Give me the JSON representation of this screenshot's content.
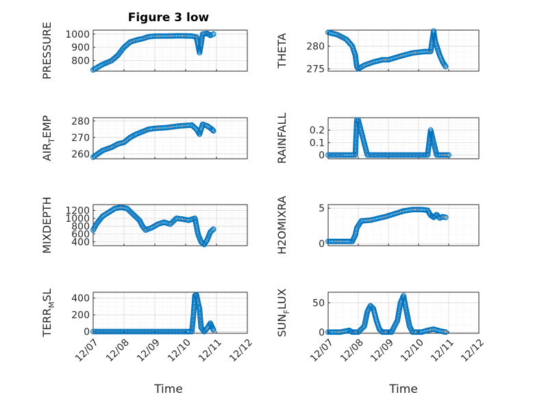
{
  "figure": {
    "title": "Figure 3 low"
  },
  "colors": {
    "marker": "#0072BD",
    "axis": "#262626",
    "grid_major": "#d9d9d9",
    "grid_minor": "#e6e6e6"
  },
  "x_axis": {
    "label": "Time",
    "ticks": [
      "12/07",
      "12/08",
      "12/09",
      "12/10",
      "12/11",
      "12/12"
    ],
    "tick_values": [
      0,
      1,
      2,
      3,
      4,
      5
    ],
    "range": [
      0,
      5
    ]
  },
  "chart_data": [
    {
      "type": "scatter",
      "name": "pressure",
      "ylabel": "PRESSURE",
      "title": "Figure 3 low",
      "ylim": [
        720,
        1030
      ],
      "yticks": [
        800,
        900,
        1000
      ],
      "ytick_labels": [
        "800",
        "900",
        "1000"
      ],
      "x_axis_ticks_visible": false,
      "grid": true,
      "points": [
        [
          0,
          730
        ],
        [
          0.3,
          770
        ],
        [
          0.6,
          800
        ],
        [
          0.8,
          840
        ],
        [
          1.0,
          900
        ],
        [
          1.2,
          940
        ],
        [
          1.4,
          955
        ],
        [
          1.6,
          965
        ],
        [
          1.8,
          980
        ],
        [
          2.0,
          985
        ],
        [
          2.4,
          985
        ],
        [
          2.8,
          987
        ],
        [
          3.2,
          985
        ],
        [
          3.35,
          978
        ],
        [
          3.45,
          860
        ],
        [
          3.5,
          925
        ],
        [
          3.55,
          1000
        ],
        [
          3.7,
          1005
        ],
        [
          3.8,
          990
        ],
        [
          3.9,
          1000
        ]
      ]
    },
    {
      "type": "scatter",
      "name": "theta",
      "ylabel": "THETA",
      "ylim": [
        274.5,
        283.5
      ],
      "yticks": [
        275,
        280
      ],
      "ytick_labels": [
        "275",
        "280"
      ],
      "x_axis_ticks_visible": false,
      "grid": true,
      "points": [
        [
          0,
          283
        ],
        [
          0.3,
          282.5
        ],
        [
          0.6,
          281.5
        ],
        [
          0.8,
          280
        ],
        [
          0.9,
          278
        ],
        [
          0.95,
          275.5
        ],
        [
          1.0,
          275
        ],
        [
          1.2,
          275.8
        ],
        [
          1.5,
          276.5
        ],
        [
          1.8,
          277
        ],
        [
          2.0,
          277
        ],
        [
          2.4,
          277.8
        ],
        [
          2.8,
          278.5
        ],
        [
          3.2,
          278.8
        ],
        [
          3.4,
          278.8
        ],
        [
          3.5,
          283.3
        ],
        [
          3.55,
          281
        ],
        [
          3.7,
          278
        ],
        [
          3.8,
          276.5
        ],
        [
          3.9,
          275.5
        ]
      ]
    },
    {
      "type": "scatter",
      "name": "air_temp",
      "ylabel": "AIR_TEMP",
      "ylim": [
        257,
        282
      ],
      "yticks": [
        260,
        270,
        280
      ],
      "ytick_labels": [
        "260",
        "270",
        "280"
      ],
      "x_axis_ticks_visible": false,
      "grid": true,
      "points": [
        [
          0,
          258
        ],
        [
          0.3,
          262
        ],
        [
          0.6,
          264
        ],
        [
          0.8,
          266
        ],
        [
          1.0,
          267
        ],
        [
          1.2,
          270
        ],
        [
          1.4,
          272
        ],
        [
          1.6,
          273.5
        ],
        [
          1.8,
          275
        ],
        [
          2.0,
          275.5
        ],
        [
          2.4,
          276
        ],
        [
          2.8,
          277
        ],
        [
          3.2,
          277.5
        ],
        [
          3.35,
          275
        ],
        [
          3.45,
          272
        ],
        [
          3.55,
          278
        ],
        [
          3.7,
          277
        ],
        [
          3.85,
          275
        ],
        [
          3.9,
          274
        ]
      ]
    },
    {
      "type": "scatter",
      "name": "rainfall",
      "ylabel": "RAINFALL",
      "ylim": [
        -0.03,
        0.3
      ],
      "yticks": [
        0,
        0.1,
        0.2
      ],
      "ytick_labels": [
        "0",
        "0.1",
        "0.2"
      ],
      "x_axis_ticks_visible": false,
      "grid": true,
      "points": [
        [
          0,
          0
        ],
        [
          0.5,
          0
        ],
        [
          0.9,
          0
        ],
        [
          0.95,
          0.28
        ],
        [
          1.0,
          0.28
        ],
        [
          1.3,
          0
        ],
        [
          1.8,
          0
        ],
        [
          2.3,
          0
        ],
        [
          2.8,
          0
        ],
        [
          3.3,
          0
        ],
        [
          3.4,
          0.2
        ],
        [
          3.6,
          0
        ],
        [
          4.0,
          0
        ]
      ]
    },
    {
      "type": "scatter",
      "name": "mixdepth",
      "ylabel": "MIXDEPTH",
      "ylim": [
        300,
        1350
      ],
      "yticks": [
        400,
        600,
        800,
        1000,
        1200
      ],
      "ytick_labels": [
        "400",
        "600",
        "800",
        "1000",
        "1200"
      ],
      "x_axis_ticks_visible": false,
      "grid": true,
      "points": [
        [
          0,
          700
        ],
        [
          0.1,
          850
        ],
        [
          0.3,
          1050
        ],
        [
          0.5,
          1150
        ],
        [
          0.7,
          1250
        ],
        [
          0.9,
          1280
        ],
        [
          1.1,
          1250
        ],
        [
          1.3,
          1100
        ],
        [
          1.5,
          950
        ],
        [
          1.6,
          800
        ],
        [
          1.7,
          700
        ],
        [
          1.9,
          760
        ],
        [
          2.1,
          850
        ],
        [
          2.3,
          900
        ],
        [
          2.5,
          850
        ],
        [
          2.7,
          1000
        ],
        [
          2.9,
          980
        ],
        [
          3.1,
          950
        ],
        [
          3.3,
          1000
        ],
        [
          3.4,
          600
        ],
        [
          3.5,
          400
        ],
        [
          3.6,
          330
        ],
        [
          3.7,
          450
        ],
        [
          3.8,
          650
        ],
        [
          3.9,
          720
        ]
      ]
    },
    {
      "type": "scatter",
      "name": "h2omixra",
      "ylabel": "H2OMIXRA",
      "ylim": [
        -0.3,
        5.5
      ],
      "yticks": [
        0,
        5
      ],
      "ytick_labels": [
        "0",
        "5"
      ],
      "x_axis_ticks_visible": false,
      "grid": true,
      "points": [
        [
          0,
          0.3
        ],
        [
          0.3,
          0.3
        ],
        [
          0.6,
          0.3
        ],
        [
          0.8,
          0.3
        ],
        [
          0.9,
          1.2
        ],
        [
          0.95,
          2.2
        ],
        [
          1.1,
          3.2
        ],
        [
          1.4,
          3.3
        ],
        [
          1.6,
          3.5
        ],
        [
          1.9,
          3.8
        ],
        [
          2.2,
          4.2
        ],
        [
          2.5,
          4.6
        ],
        [
          2.8,
          4.8
        ],
        [
          3.1,
          4.8
        ],
        [
          3.3,
          4.7
        ],
        [
          3.4,
          4.0
        ],
        [
          3.5,
          3.7
        ],
        [
          3.6,
          4.1
        ],
        [
          3.7,
          3.6
        ],
        [
          3.8,
          3.8
        ],
        [
          3.9,
          3.7
        ]
      ]
    },
    {
      "type": "scatter",
      "name": "terr_msl",
      "ylabel": "TERR_MSL",
      "ylim": [
        -20,
        470
      ],
      "yticks": [
        0,
        200,
        400
      ],
      "ytick_labels": [
        "0",
        "200",
        "400"
      ],
      "xticks_visible": true,
      "grid": true,
      "points": [
        [
          0,
          0
        ],
        [
          0.5,
          0
        ],
        [
          1.0,
          0
        ],
        [
          1.5,
          0
        ],
        [
          2.0,
          0
        ],
        [
          2.5,
          0
        ],
        [
          3.0,
          0
        ],
        [
          3.2,
          0
        ],
        [
          3.25,
          180
        ],
        [
          3.3,
          430
        ],
        [
          3.35,
          440
        ],
        [
          3.4,
          350
        ],
        [
          3.45,
          270
        ],
        [
          3.5,
          50
        ],
        [
          3.6,
          0
        ],
        [
          3.7,
          40
        ],
        [
          3.8,
          100
        ],
        [
          3.85,
          60
        ],
        [
          3.9,
          20
        ]
      ]
    },
    {
      "type": "scatter",
      "name": "sun_flux",
      "ylabel": "SUN_FLUX",
      "ylim": [
        -2,
        68
      ],
      "yticks": [
        0,
        50
      ],
      "ytick_labels": [
        "0",
        "50"
      ],
      "xticks_visible": true,
      "grid": true,
      "points": [
        [
          0,
          0
        ],
        [
          0.4,
          0
        ],
        [
          0.6,
          2
        ],
        [
          0.7,
          3
        ],
        [
          0.8,
          0
        ],
        [
          1.0,
          0
        ],
        [
          1.2,
          10
        ],
        [
          1.3,
          35
        ],
        [
          1.4,
          45
        ],
        [
          1.5,
          40
        ],
        [
          1.6,
          20
        ],
        [
          1.7,
          5
        ],
        [
          1.8,
          0
        ],
        [
          2.1,
          0
        ],
        [
          2.3,
          20
        ],
        [
          2.4,
          50
        ],
        [
          2.5,
          62
        ],
        [
          2.6,
          35
        ],
        [
          2.7,
          10
        ],
        [
          2.8,
          0
        ],
        [
          3.1,
          0
        ],
        [
          3.3,
          3
        ],
        [
          3.5,
          5
        ],
        [
          3.7,
          2
        ],
        [
          3.9,
          0
        ]
      ]
    }
  ]
}
